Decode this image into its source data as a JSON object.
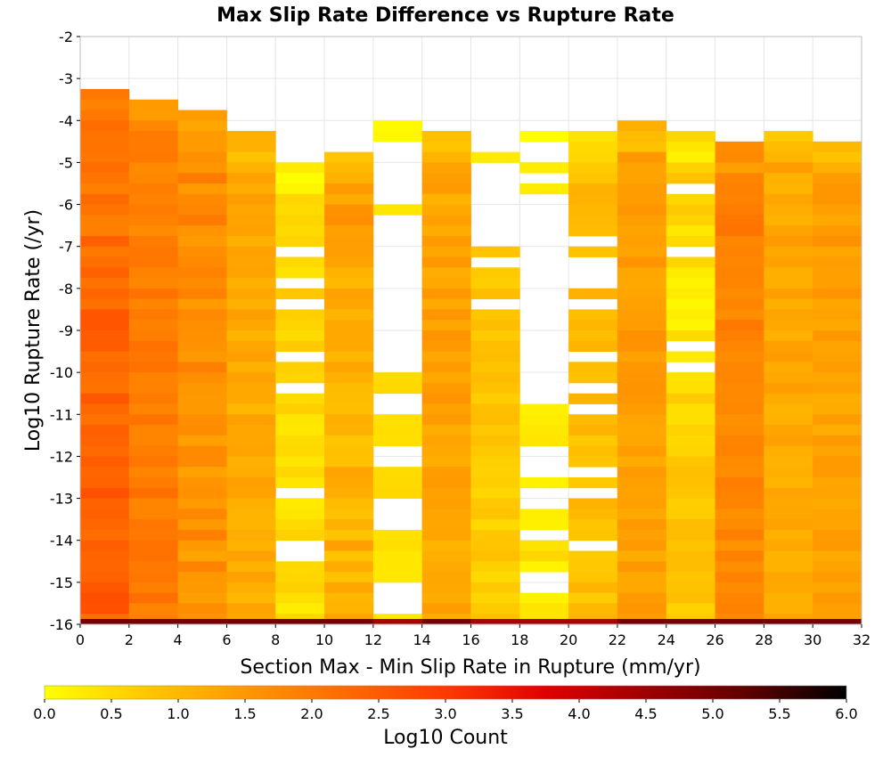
{
  "chart_data": {
    "type": "heatmap",
    "title": "Max Slip Rate Difference vs Rupture Rate",
    "xlabel": "Section Max - Min Slip Rate in Rupture (mm/yr)",
    "ylabel": "Log10 Rupture Rate (/yr)",
    "xlim": [
      0,
      32
    ],
    "ylim": [
      -16,
      -2
    ],
    "x_ticks": [
      "0",
      "2",
      "4",
      "6",
      "8",
      "10",
      "12",
      "14",
      "16",
      "18",
      "20",
      "22",
      "24",
      "26",
      "28",
      "30",
      "32"
    ],
    "y_ticks": [
      "-2",
      "-3",
      "-4",
      "-5",
      "-6",
      "-7",
      "-8",
      "-9",
      "-10",
      "-11",
      "-12",
      "-13",
      "-14",
      "-15",
      "-16"
    ],
    "grid": true,
    "x_bin_width": 2,
    "y_bin_height": 0.25,
    "colorbar": {
      "label": "Log10 Count",
      "range": [
        0.0,
        6.0
      ],
      "ticks": [
        "0.0",
        "0.5",
        "1.0",
        "1.5",
        "2.0",
        "2.5",
        "3.0",
        "3.5",
        "4.0",
        "4.5",
        "5.0",
        "5.5",
        "6.0"
      ],
      "colors": [
        "#ffff00",
        "#ffc800",
        "#ff9800",
        "#ff6a00",
        "#ff3a00",
        "#e00000",
        "#a00000",
        "#600000",
        "#000000"
      ]
    },
    "columns": [
      {
        "x": 0,
        "top": -3.25,
        "base": 2.4,
        "peak": -6.0,
        "peak_value": 2.1,
        "edge": 0.3,
        "holes": []
      },
      {
        "x": 2,
        "top": -3.5,
        "base": 2.0,
        "peak": -6.0,
        "peak_value": 1.9,
        "edge": 0.2,
        "holes": []
      },
      {
        "x": 4,
        "top": -3.75,
        "base": 1.6,
        "peak": -6.0,
        "peak_value": 1.7,
        "edge": 0.3,
        "holes": []
      },
      {
        "x": 6,
        "top": -4.25,
        "base": 1.2,
        "peak": -5.5,
        "peak_value": 1.3,
        "edge": 0.2,
        "holes": []
      },
      {
        "x": 8,
        "top": -5.0,
        "base": 0.45,
        "peak": -9.0,
        "peak_value": 0.6,
        "edge": 0.2,
        "holes": [
          [
            -7.0,
            -7.25
          ],
          [
            -7.75,
            -8.0
          ],
          [
            -8.25,
            -8.5
          ],
          [
            -9.5,
            -9.75
          ],
          [
            -10.25,
            -10.5
          ],
          [
            -12.75,
            -13.0
          ],
          [
            -14.0,
            -14.5
          ]
        ]
      },
      {
        "x": 10,
        "top": -4.75,
        "base": 1.1,
        "peak": -5.5,
        "peak_value": 1.4,
        "edge": 0.3,
        "holes": []
      },
      {
        "x": 12,
        "top": -4.0,
        "base": 0.4,
        "peak": -10.5,
        "peak_value": 0.5,
        "edge": 0.1,
        "holes": [
          [
            -4.5,
            -6.0
          ],
          [
            -6.25,
            -10.0
          ],
          [
            -10.5,
            -11.0
          ],
          [
            -11.75,
            -12.25
          ],
          [
            -13.0,
            -13.75
          ],
          [
            -15.0,
            -15.75
          ]
        ]
      },
      {
        "x": 14,
        "top": -4.25,
        "base": 1.25,
        "peak": -9.5,
        "peak_value": 1.4,
        "edge": 0.2,
        "holes": []
      },
      {
        "x": 16,
        "top": -4.75,
        "base": 0.7,
        "peak": -9.5,
        "peak_value": 0.8,
        "edge": 0.2,
        "holes": [
          [
            -5.0,
            -7.0
          ],
          [
            -7.25,
            -7.5
          ],
          [
            -8.25,
            -8.5
          ]
        ]
      },
      {
        "x": 18,
        "top": -4.25,
        "base": 0.35,
        "peak": -11.5,
        "peak_value": 0.4,
        "edge": 0.2,
        "holes": [
          [
            -4.5,
            -5.0
          ],
          [
            -5.25,
            -5.5
          ],
          [
            -5.75,
            -10.75
          ],
          [
            -11.75,
            -12.5
          ],
          [
            -12.75,
            -13.25
          ],
          [
            -13.75,
            -14.0
          ],
          [
            -14.75,
            -15.25
          ]
        ]
      },
      {
        "x": 20,
        "top": -4.25,
        "base": 0.9,
        "peak": -9.0,
        "peak_value": 1.0,
        "edge": 0.2,
        "holes": [
          [
            -6.75,
            -7.0
          ],
          [
            -7.25,
            -8.0
          ],
          [
            -8.25,
            -8.5
          ],
          [
            -9.5,
            -9.75
          ],
          [
            -10.25,
            -10.5
          ],
          [
            -10.75,
            -11.0
          ],
          [
            -12.25,
            -12.5
          ],
          [
            -12.75,
            -13.0
          ],
          [
            -14.0,
            -14.25
          ]
        ]
      },
      {
        "x": 22,
        "top": -4.0,
        "base": 1.35,
        "peak": -9.5,
        "peak_value": 1.5,
        "edge": 0.2,
        "holes": []
      },
      {
        "x": 24,
        "top": -4.25,
        "base": 0.75,
        "peak": -8.5,
        "peak_value": 0.3,
        "edge": 0.2,
        "holes": [
          [
            -5.5,
            -5.75
          ],
          [
            -7.0,
            -7.25
          ],
          [
            -9.25,
            -9.5
          ],
          [
            -9.75,
            -10.0
          ]
        ]
      },
      {
        "x": 26,
        "top": -4.5,
        "base": 1.75,
        "peak": -6.25,
        "peak_value": 1.95,
        "edge": 0.2,
        "holes": []
      },
      {
        "x": 28,
        "top": -4.25,
        "base": 1.2,
        "peak": -8.0,
        "peak_value": 1.3,
        "edge": 0.2,
        "holes": []
      },
      {
        "x": 30,
        "top": -4.5,
        "base": 1.3,
        "peak": -8.0,
        "peak_value": 1.45,
        "edge": 0.2,
        "holes": []
      }
    ],
    "bottom_row": {
      "y": -16.0,
      "value": 5.0
    }
  }
}
